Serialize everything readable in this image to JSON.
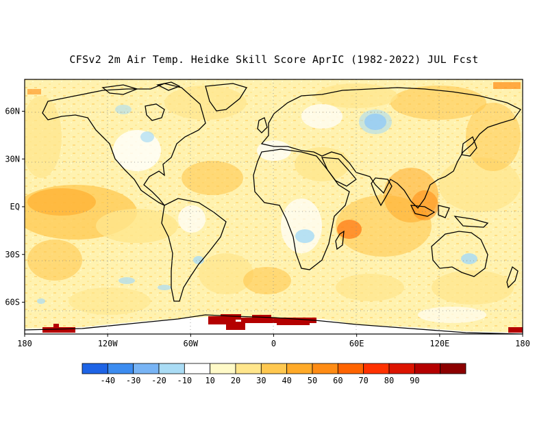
{
  "title": "CFSv2 2m Air Temp. Heidke Skill Score AprIC (1982-2022) JUL Fcst",
  "map": {
    "lon_range": [
      -180,
      180
    ],
    "lat_range": [
      -80,
      80
    ],
    "grid_lines": "dotted",
    "x_ticks": [
      {
        "lon": -180,
        "label": "180"
      },
      {
        "lon": -120,
        "label": "120W"
      },
      {
        "lon": -60,
        "label": "60W"
      },
      {
        "lon": 0,
        "label": "0"
      },
      {
        "lon": 60,
        "label": "60E"
      },
      {
        "lon": 120,
        "label": "120E"
      },
      {
        "lon": 180,
        "label": "180"
      }
    ],
    "y_ticks": [
      {
        "lat": 60,
        "label": "60N"
      },
      {
        "lat": 30,
        "label": "30N"
      },
      {
        "lat": 0,
        "label": "EQ"
      },
      {
        "lat": -30,
        "label": "30S"
      },
      {
        "lat": -60,
        "label": "60S"
      }
    ]
  },
  "colorbar": {
    "colors": [
      "#1e64e6",
      "#3c8cf0",
      "#78b4f5",
      "#aadcf5",
      "#ffffff",
      "#fffac8",
      "#ffe68c",
      "#ffc850",
      "#ffaa28",
      "#ff8c14",
      "#ff6400",
      "#ff3200",
      "#dc1400",
      "#b40000",
      "#8c0000"
    ],
    "labels": [
      "-40",
      "-30",
      "-20",
      "-10",
      "10",
      "20",
      "30",
      "40",
      "50",
      "60",
      "70",
      "80",
      "90"
    ]
  }
}
